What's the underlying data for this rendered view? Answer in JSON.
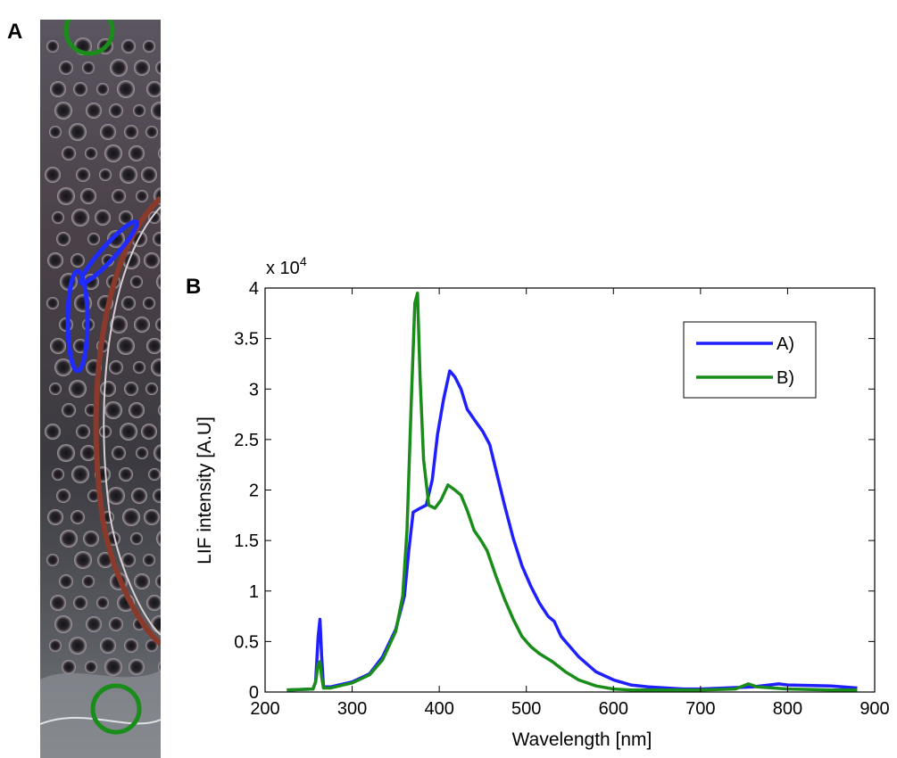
{
  "panels": {
    "a": "A",
    "b": "B"
  },
  "photo": {
    "markers": [
      {
        "shape": "circle",
        "color": "#1a8c1a"
      },
      {
        "shape": "ellipse",
        "color": "#1f2bff"
      },
      {
        "shape": "ellipse",
        "color": "#1f2bff"
      },
      {
        "shape": "circle",
        "color": "#1a8c1a"
      }
    ]
  },
  "chart_data": {
    "type": "line",
    "title": "",
    "xlabel": "Wavelength [nm]",
    "ylabel": "LIF intensity [A.U]",
    "y_multiplier": "x 10",
    "y_multiplier_exp": "4",
    "xlim": [
      200,
      900
    ],
    "ylim": [
      0,
      4
    ],
    "xticks": [
      "200",
      "300",
      "400",
      "500",
      "600",
      "700",
      "800",
      "900"
    ],
    "yticks": [
      "0",
      "0.5",
      "1",
      "1.5",
      "2",
      "2.5",
      "3",
      "3.5",
      "4"
    ],
    "grid": false,
    "legend": "top-right",
    "series": [
      {
        "name": "A)",
        "color": "#1f1fff",
        "x": [
          225,
          255,
          258,
          261,
          263,
          265,
          267,
          275,
          290,
          300,
          320,
          335,
          350,
          360,
          365,
          370,
          378,
          385,
          392,
          398,
          405,
          412,
          418,
          425,
          432,
          440,
          450,
          458,
          465,
          475,
          485,
          495,
          505,
          515,
          525,
          532,
          540,
          560,
          580,
          600,
          620,
          640,
          680,
          700,
          760,
          790,
          800,
          850,
          880
        ],
        "y": [
          0.02,
          0.03,
          0.1,
          0.55,
          0.72,
          0.35,
          0.05,
          0.05,
          0.08,
          0.1,
          0.18,
          0.35,
          0.62,
          0.95,
          1.4,
          1.78,
          1.82,
          1.85,
          2.1,
          2.55,
          2.9,
          3.18,
          3.12,
          3.0,
          2.8,
          2.7,
          2.58,
          2.45,
          2.2,
          1.85,
          1.52,
          1.25,
          1.05,
          0.88,
          0.75,
          0.7,
          0.55,
          0.35,
          0.2,
          0.12,
          0.07,
          0.05,
          0.03,
          0.03,
          0.05,
          0.08,
          0.07,
          0.06,
          0.04
        ]
      },
      {
        "name": "B)",
        "color": "#1a8c1a",
        "x": [
          225,
          255,
          258,
          261,
          263,
          265,
          267,
          275,
          290,
          300,
          320,
          335,
          350,
          358,
          363,
          368,
          372,
          375,
          378,
          382,
          388,
          395,
          402,
          410,
          418,
          425,
          432,
          440,
          448,
          455,
          465,
          475,
          485,
          495,
          505,
          515,
          530,
          545,
          560,
          580,
          600,
          620,
          640,
          680,
          700,
          740,
          755,
          765,
          800,
          850,
          880
        ],
        "y": [
          0.02,
          0.03,
          0.1,
          0.28,
          0.3,
          0.15,
          0.04,
          0.04,
          0.07,
          0.09,
          0.17,
          0.32,
          0.6,
          0.95,
          1.6,
          2.9,
          3.85,
          3.95,
          3.1,
          2.3,
          1.85,
          1.82,
          1.9,
          2.05,
          2.0,
          1.95,
          1.8,
          1.6,
          1.5,
          1.4,
          1.15,
          0.92,
          0.72,
          0.55,
          0.45,
          0.38,
          0.3,
          0.2,
          0.12,
          0.06,
          0.03,
          0.02,
          0.02,
          0.02,
          0.02,
          0.03,
          0.08,
          0.05,
          0.03,
          0.02,
          0.02
        ]
      }
    ]
  }
}
